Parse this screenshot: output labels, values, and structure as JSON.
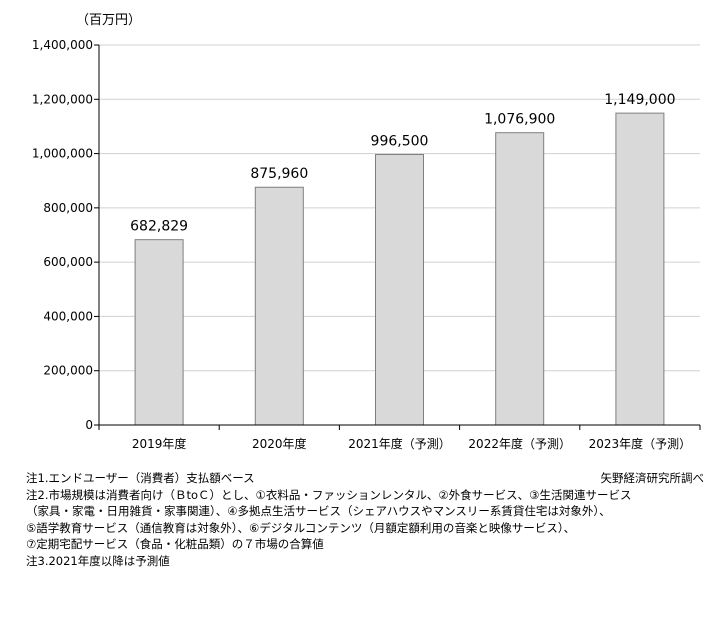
{
  "unit_label": "（百万円）",
  "source": "矢野経済研究所調べ",
  "notes": [
    "注1.エンドユーザー（消費者）支払額ベース",
    "注2.市場規模は消費者向け（ＢtoＣ）とし、①衣料品・ファッションレンタル、②外食サービス、③生活関連サービス",
    "（家具・家電・日用雑貨・家事関連）、④多拠点生活サービス（シェアハウスやマンスリー系賃貸住宅は対象外）、",
    "⑤語学教育サービス（通信教育は対象外）、⑥デジタルコンテンツ（月額定額利用の音楽と映像サービス）、",
    "⑦定期宅配サービス（食品・化粧品類）の７市場の合算値",
    "注3.2021年度以降は予測値"
  ],
  "chart_data": {
    "type": "bar",
    "categories": [
      "2019年度",
      "2020年度",
      "2021年度（予測）",
      "2022年度（予測）",
      "2023年度（予測）"
    ],
    "values": [
      682829,
      875960,
      996500,
      1076900,
      1149000
    ],
    "value_labels": [
      "682,829",
      "875,960",
      "996,500",
      "1,076,900",
      "1,149,000"
    ],
    "yticks": [
      0,
      200000,
      400000,
      600000,
      800000,
      1000000,
      1200000,
      1400000
    ],
    "ytick_labels": [
      "0",
      "200,000",
      "400,000",
      "600,000",
      "800,000",
      "1,000,000",
      "1,200,000",
      "1,400,000"
    ],
    "ylim": [
      0,
      1400000
    ],
    "ylabel": "（百万円）",
    "grid": true,
    "bar_color": "#d9d9d9",
    "bar_edge_color": "#7f7f7f",
    "grid_color": "#d0d0d0"
  }
}
